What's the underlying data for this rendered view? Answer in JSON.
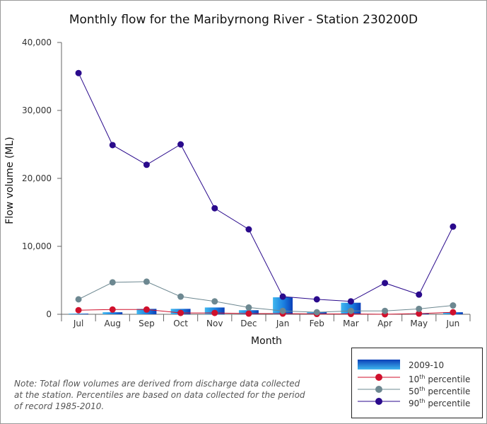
{
  "chart_data": {
    "type": "bar",
    "title": "Monthly flow for the Maribyrnong River - Station 230200D",
    "xlabel": "Month",
    "ylabel": "Flow volume (ML)",
    "ylim": [
      0,
      40000
    ],
    "yticks": [
      "0",
      "10,000",
      "20,000",
      "30,000",
      "40,000"
    ],
    "categories": [
      "Jul",
      "Aug",
      "Sep",
      "Oct",
      "Nov",
      "Dec",
      "Jan",
      "Feb",
      "Mar",
      "Apr",
      "May",
      "Jun"
    ],
    "grid": false,
    "legend_position": "bottom-right",
    "series": [
      {
        "name": "2009-10",
        "kind": "bar",
        "color": "#1565d8",
        "values": [
          100,
          300,
          800,
          800,
          1000,
          600,
          2500,
          300,
          1700,
          50,
          100,
          300
        ]
      },
      {
        "name": "10th percentile",
        "kind": "line",
        "color": "#d0102c",
        "values": [
          600,
          700,
          700,
          200,
          200,
          100,
          100,
          50,
          50,
          0,
          100,
          300
        ]
      },
      {
        "name": "50th percentile",
        "kind": "line",
        "color": "#6d8891",
        "values": [
          2200,
          4700,
          4800,
          2600,
          1900,
          1000,
          500,
          300,
          500,
          500,
          800,
          1300
        ]
      },
      {
        "name": "90th percentile",
        "kind": "line",
        "color": "#2a0a8c",
        "values": [
          35500,
          24900,
          22000,
          25000,
          15600,
          12500,
          2600,
          2200,
          1900,
          4600,
          2900,
          12900
        ]
      }
    ]
  },
  "legend": {
    "items": [
      {
        "label": "2009-10",
        "sup": "",
        "suffix": ""
      },
      {
        "label": "10",
        "sup": "th",
        "suffix": " percentile"
      },
      {
        "label": "50",
        "sup": "th",
        "suffix": " percentile"
      },
      {
        "label": "90",
        "sup": "th",
        "suffix": " percentile"
      }
    ]
  },
  "note": {
    "lines": [
      "Note: Total flow volumes are derived from discharge data collected",
      "at the station. Percentiles are based on data collected for the period",
      "of record 1985-2010."
    ]
  }
}
